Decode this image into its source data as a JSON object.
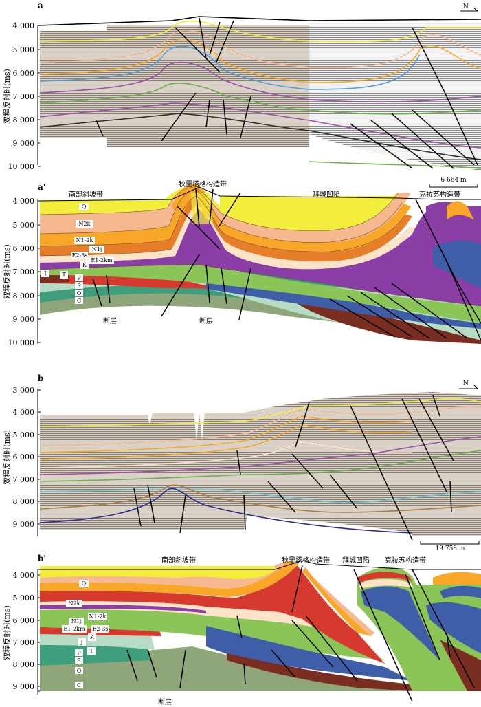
{
  "y_axis_label": "双程反射时(ms)",
  "north_label": "N",
  "panels": [
    {
      "label": "a",
      "ticks": [
        "4 000",
        "5 000",
        "6 000",
        "7 000",
        "8 000",
        "9 000",
        "10 000"
      ],
      "scale": "6 664 m"
    },
    {
      "label": "a'",
      "ticks": [
        "4 000",
        "5 000",
        "6 000",
        "7 000",
        "8 000",
        "9 000",
        "10 000"
      ],
      "regions": [
        "南部斜坡带",
        "秋里塔格构造带",
        "拜城凹陷",
        "克拉苏构造带"
      ],
      "faults": [
        "断层",
        "断层"
      ]
    },
    {
      "label": "b",
      "ticks": [
        "3 000",
        "4 000",
        "5 000",
        "6 000",
        "7 000",
        "8 000",
        "9 000"
      ],
      "scale": "19 758 m"
    },
    {
      "label": "b'",
      "ticks": [
        "4 000",
        "5 000",
        "6 000",
        "7 000",
        "8 000",
        "9 000"
      ],
      "regions": [
        "南部斜坡带",
        "秋里塔格构造带",
        "拜城凹陷",
        "克拉苏构造带"
      ],
      "faults": [
        "断层"
      ]
    }
  ],
  "strata_a": [
    "Q",
    "N2k",
    "N1-2k",
    "N1j",
    "E2-3s",
    "E1-2km",
    "K",
    "J",
    "T",
    "P",
    "S",
    "O",
    "C"
  ],
  "strata_b": [
    "Q",
    "N2k",
    "N1-2k",
    "N1j",
    "E1-2km",
    "E2-3s",
    "K",
    "J",
    "T",
    "P",
    "S",
    "O",
    "C"
  ],
  "colors": {
    "Q": "#f3ee3c",
    "N2k": "#f6b98f",
    "N12k": "#f8a728",
    "N1j": "#e67e2a",
    "E23s": "#fde4c8",
    "E12km": "#8b3fa6",
    "K": "#8cc557",
    "J": "#3e5fa8",
    "T": "#d63a2e",
    "P": "#7a2e22",
    "S": "#b7dcc4",
    "O": "#3f9f7c",
    "C": "#8fa57a"
  }
}
